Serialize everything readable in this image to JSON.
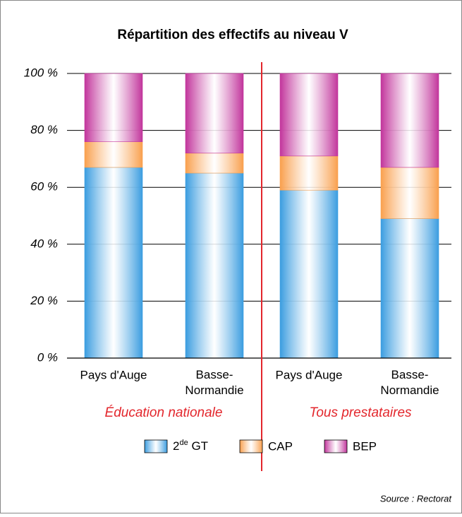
{
  "chart_data": {
    "type": "stacked-bar",
    "title": "Répartition des effectifs au niveau V",
    "categories": [
      "Pays d'Auge",
      "Basse-\nNormandie",
      "Pays d'Auge",
      "Basse-\nNormandie"
    ],
    "groups": [
      "Éducation nationale",
      "Tous prestataires"
    ],
    "series": [
      {
        "name": "2de GT",
        "color": "#3b9de0",
        "values": [
          67,
          65,
          59,
          49
        ]
      },
      {
        "name": "CAP",
        "color": "#f9a04e",
        "values": [
          9,
          7,
          12,
          18
        ]
      },
      {
        "name": "BEP",
        "color": "#c2359c",
        "values": [
          24,
          28,
          29,
          33
        ]
      }
    ],
    "ylim": [
      0,
      100
    ],
    "yticks": [
      {
        "value": 0,
        "label": "0 %"
      },
      {
        "value": 20,
        "label": "20 %"
      },
      {
        "value": 40,
        "label": "40 %"
      },
      {
        "value": 60,
        "label": "60 %"
      },
      {
        "value": 80,
        "label": "80 %"
      },
      {
        "value": 100,
        "label": "100 %"
      }
    ],
    "grid": true,
    "source": "Source : Rectorat"
  }
}
